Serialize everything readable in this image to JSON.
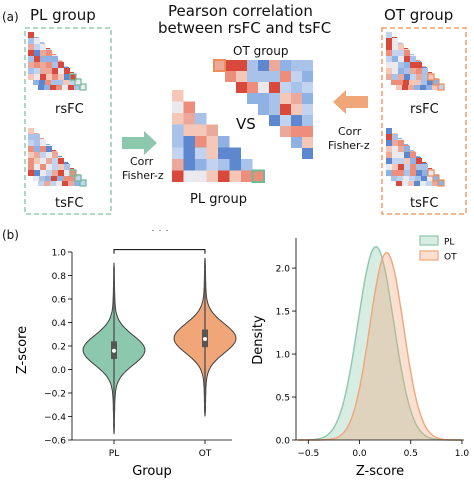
{
  "panel_a": {
    "label": "(a)",
    "title_line1": "Pearson correlation",
    "title_line2": "between rsFC and tsFC",
    "pl_group": {
      "title": "PL group",
      "rs_label": "rsFC",
      "ts_label": "tsFC"
    },
    "ot_group": {
      "title": "OT group",
      "rs_label": "rsFC",
      "ts_label": "tsFC"
    },
    "center": {
      "ot_label": "OT group",
      "pl_label": "PL group",
      "vs_label": "VS"
    },
    "arrow_left_label": [
      "Corr",
      "Fisher-z"
    ],
    "arrow_right_label": [
      "Corr",
      "Fisher-z"
    ],
    "colors": {
      "pl_accent": "#8cc8ad",
      "ot_accent": "#f0a679",
      "pl_border": "#7fc4a3",
      "ot_border": "#ee8c55"
    }
  },
  "panel_b": {
    "label": "(b)",
    "significance": "***",
    "chart_data": [
      {
        "type": "violin",
        "categories": [
          "PL",
          "OT"
        ],
        "series": [
          {
            "values_summary": {
              "min": -0.55,
              "q1": 0.09,
              "median": 0.16,
              "q3": 0.24,
              "max": 0.91
            },
            "color": "#8cc8ad"
          },
          {
            "values_summary": {
              "min": -0.4,
              "q1": 0.19,
              "median": 0.26,
              "q3": 0.34,
              "max": 0.95
            },
            "color": "#f0a679"
          }
        ],
        "xlabel": "Group",
        "ylabel": "Z-score",
        "ylim": [
          -0.6,
          1.0
        ],
        "yticks": [
          -0.6,
          -0.4,
          -0.2,
          0.0,
          0.2,
          0.4,
          0.6,
          0.8,
          1.0
        ],
        "ytick_labels": [
          "−0.6",
          "−0.4",
          "−0.2",
          "0.0",
          "0.2",
          "0.4",
          "0.6",
          "0.8",
          "1.0"
        ]
      },
      {
        "type": "area",
        "xlabel": "Z-score",
        "ylabel": "Density",
        "xlim": [
          -0.62,
          1.02
        ],
        "ylim": [
          0,
          2.35
        ],
        "xticks": [
          -0.5,
          0.0,
          0.5,
          1.0
        ],
        "xtick_labels": [
          "−0.5",
          "0.0",
          "0.5",
          "1.0"
        ],
        "yticks": [
          0.0,
          0.5,
          1.0,
          1.5,
          2.0
        ],
        "ytick_labels": [
          "0.0",
          "0.5",
          "1.0",
          "1.5",
          "2.0"
        ],
        "legend_position": "top-right",
        "series": [
          {
            "name": "PL",
            "mean": 0.16,
            "sd": 0.175,
            "peak": 2.25,
            "color": "#8cc8ad"
          },
          {
            "name": "OT",
            "mean": 0.265,
            "sd": 0.165,
            "peak": 2.18,
            "color": "#f0a679"
          }
        ]
      }
    ]
  }
}
